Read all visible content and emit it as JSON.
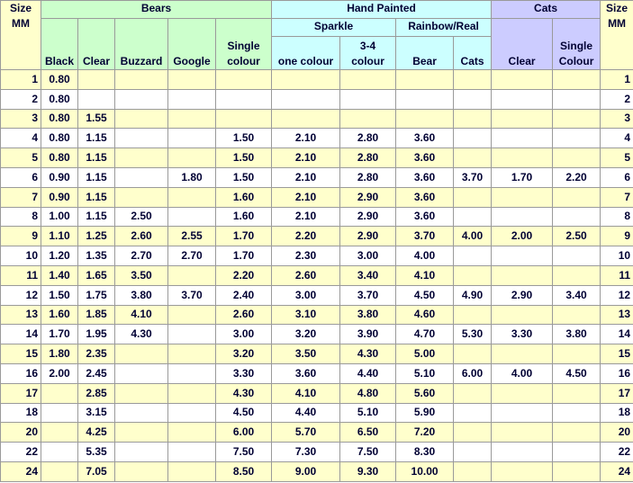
{
  "header": {
    "size": [
      "Size",
      "MM"
    ],
    "bears": "Bears",
    "hand_painted": "Hand Painted",
    "cats": "Cats",
    "sparkle": "Sparkle",
    "rainbow_real": "Rainbow/Real",
    "columns": [
      [
        "Black"
      ],
      [
        "Clear"
      ],
      [
        "Buzzard"
      ],
      [
        "Google"
      ],
      [
        "Single",
        "colour"
      ],
      [
        "one colour"
      ],
      [
        "3-4",
        "colour"
      ],
      [
        "Bear"
      ],
      [
        "Cats"
      ],
      [
        "Clear"
      ],
      [
        "Single",
        "Colour"
      ]
    ]
  },
  "rows": [
    {
      "size": 1,
      "values": [
        "0.80",
        null,
        null,
        null,
        null,
        null,
        null,
        null,
        null,
        null,
        null
      ]
    },
    {
      "size": 2,
      "values": [
        "0.80",
        null,
        null,
        null,
        null,
        null,
        null,
        null,
        null,
        null,
        null
      ]
    },
    {
      "size": 3,
      "values": [
        "0.80",
        "1.55",
        null,
        null,
        null,
        null,
        null,
        null,
        null,
        null,
        null
      ]
    },
    {
      "size": 4,
      "values": [
        "0.80",
        "1.15",
        null,
        null,
        "1.50",
        "2.10",
        "2.80",
        "3.60",
        null,
        null,
        null
      ]
    },
    {
      "size": 5,
      "values": [
        "0.80",
        "1.15",
        null,
        null,
        "1.50",
        "2.10",
        "2.80",
        "3.60",
        null,
        null,
        null
      ]
    },
    {
      "size": 6,
      "values": [
        "0.90",
        "1.15",
        null,
        "1.80",
        "1.50",
        "2.10",
        "2.80",
        "3.60",
        "3.70",
        "1.70",
        "2.20"
      ]
    },
    {
      "size": 7,
      "values": [
        "0.90",
        "1.15",
        null,
        null,
        "1.60",
        "2.10",
        "2.90",
        "3.60",
        null,
        null,
        null
      ]
    },
    {
      "size": 8,
      "values": [
        "1.00",
        "1.15",
        "2.50",
        null,
        "1.60",
        "2.10",
        "2.90",
        "3.60",
        null,
        null,
        null
      ]
    },
    {
      "size": 9,
      "values": [
        "1.10",
        "1.25",
        "2.60",
        "2.55",
        "1.70",
        "2.20",
        "2.90",
        "3.70",
        "4.00",
        "2.00",
        "2.50"
      ]
    },
    {
      "size": 10,
      "values": [
        "1.20",
        "1.35",
        "2.70",
        "2.70",
        "1.70",
        "2.30",
        "3.00",
        "4.00",
        null,
        null,
        null
      ]
    },
    {
      "size": 11,
      "values": [
        "1.40",
        "1.65",
        "3.50",
        null,
        "2.20",
        "2.60",
        "3.40",
        "4.10",
        null,
        null,
        null
      ]
    },
    {
      "size": 12,
      "values": [
        "1.50",
        "1.75",
        "3.80",
        "3.70",
        "2.40",
        "3.00",
        "3.70",
        "4.50",
        "4.90",
        "2.90",
        "3.40"
      ]
    },
    {
      "size": 13,
      "values": [
        "1.60",
        "1.85",
        "4.10",
        null,
        "2.60",
        "3.10",
        "3.80",
        "4.60",
        null,
        null,
        null
      ]
    },
    {
      "size": 14,
      "values": [
        "1.70",
        "1.95",
        "4.30",
        null,
        "3.00",
        "3.20",
        "3.90",
        "4.70",
        "5.30",
        "3.30",
        "3.80"
      ]
    },
    {
      "size": 15,
      "values": [
        "1.80",
        "2.35",
        null,
        null,
        "3.20",
        "3.50",
        "4.30",
        "5.00",
        null,
        null,
        null
      ]
    },
    {
      "size": 16,
      "values": [
        "2.00",
        "2.45",
        null,
        null,
        "3.30",
        "3.60",
        "4.40",
        "5.10",
        "6.00",
        "4.00",
        "4.50"
      ]
    },
    {
      "size": 17,
      "values": [
        null,
        "2.85",
        null,
        null,
        "4.30",
        "4.10",
        "4.80",
        "5.60",
        null,
        null,
        null
      ]
    },
    {
      "size": 18,
      "values": [
        null,
        "3.15",
        null,
        null,
        "4.50",
        "4.40",
        "5.10",
        "5.90",
        null,
        null,
        null
      ]
    },
    {
      "size": 20,
      "values": [
        null,
        "4.25",
        null,
        null,
        "6.00",
        "5.70",
        "6.50",
        "7.20",
        null,
        null,
        null
      ]
    },
    {
      "size": 22,
      "values": [
        null,
        "5.35",
        null,
        null,
        "7.50",
        "7.30",
        "7.50",
        "8.30",
        null,
        null,
        null
      ]
    },
    {
      "size": 24,
      "values": [
        null,
        "7.05",
        null,
        null,
        "8.50",
        "9.00",
        "9.30",
        "10.00",
        null,
        null,
        null
      ]
    }
  ]
}
